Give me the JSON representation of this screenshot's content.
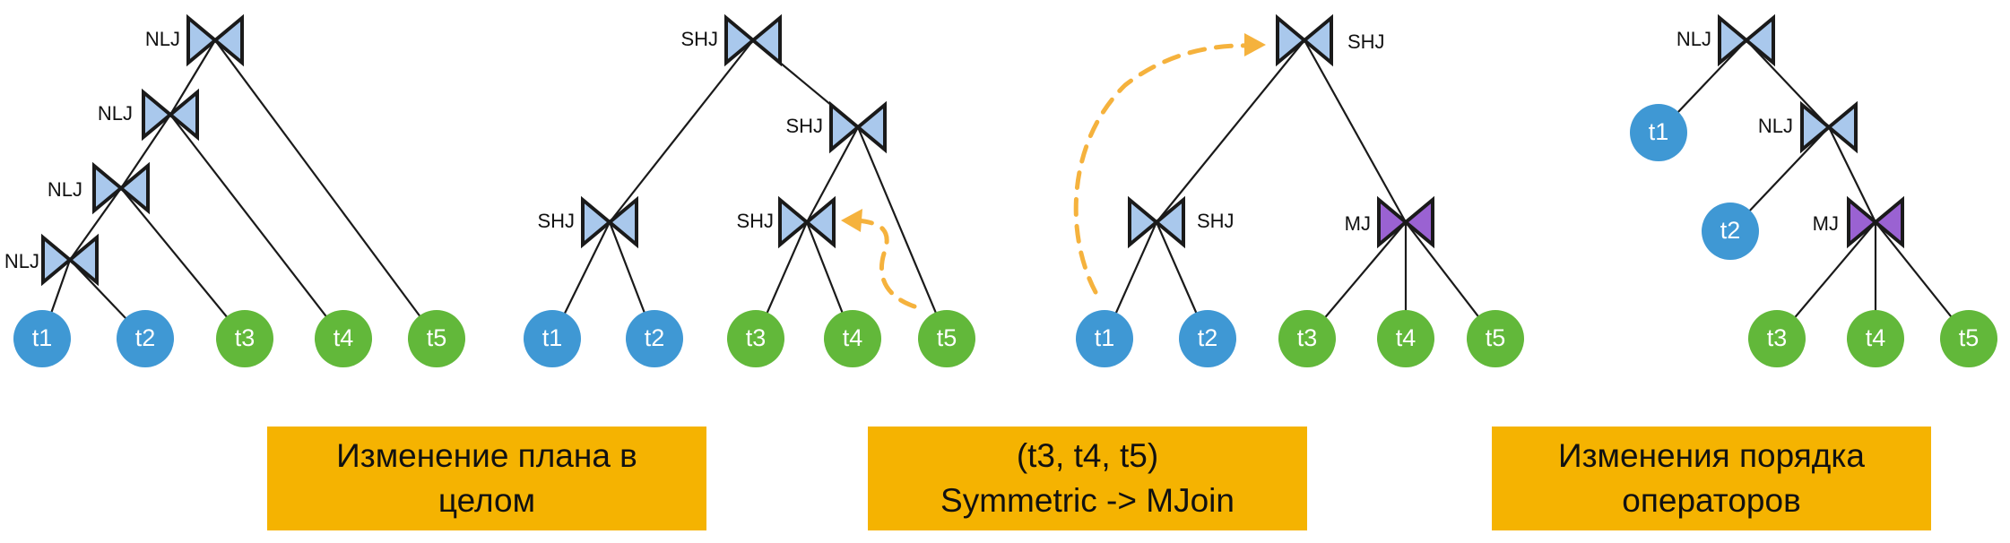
{
  "colors": {
    "join_fill": "#a9c8ec",
    "mjoin_fill": "#9a62d2",
    "base_leaf": "#3f98d4",
    "green_leaf": "#62b83a",
    "arrow": "#f5b23d",
    "caption_bg": "#f5b301"
  },
  "panels": [
    {
      "id": "original-plan",
      "operators": [
        "NLJ",
        "NLJ",
        "NLJ",
        "NLJ"
      ],
      "leaves": [
        "t1",
        "t2",
        "t3",
        "t4",
        "t5"
      ]
    },
    {
      "id": "shj-plan",
      "operators": [
        "SHJ",
        "SHJ",
        "SHJ",
        "SHJ"
      ],
      "leaves": [
        "t1",
        "t2",
        "t3",
        "t4",
        "t5"
      ]
    },
    {
      "id": "mjoin-plan",
      "operators": [
        "SHJ",
        "SHJ",
        "MJ"
      ],
      "leaves": [
        "t1",
        "t2",
        "t3",
        "t4",
        "t5"
      ]
    },
    {
      "id": "reordered-plan",
      "operators": [
        "NLJ",
        "NLJ",
        "MJ"
      ],
      "leaves": [
        "t1",
        "t2",
        "t3",
        "t4",
        "t5"
      ]
    }
  ],
  "captions": [
    "Изменение плана в\nцелом",
    "(t3, t4, t5)\nSymmetric -> MJoin",
    "Изменения порядка\nоператоров"
  ]
}
